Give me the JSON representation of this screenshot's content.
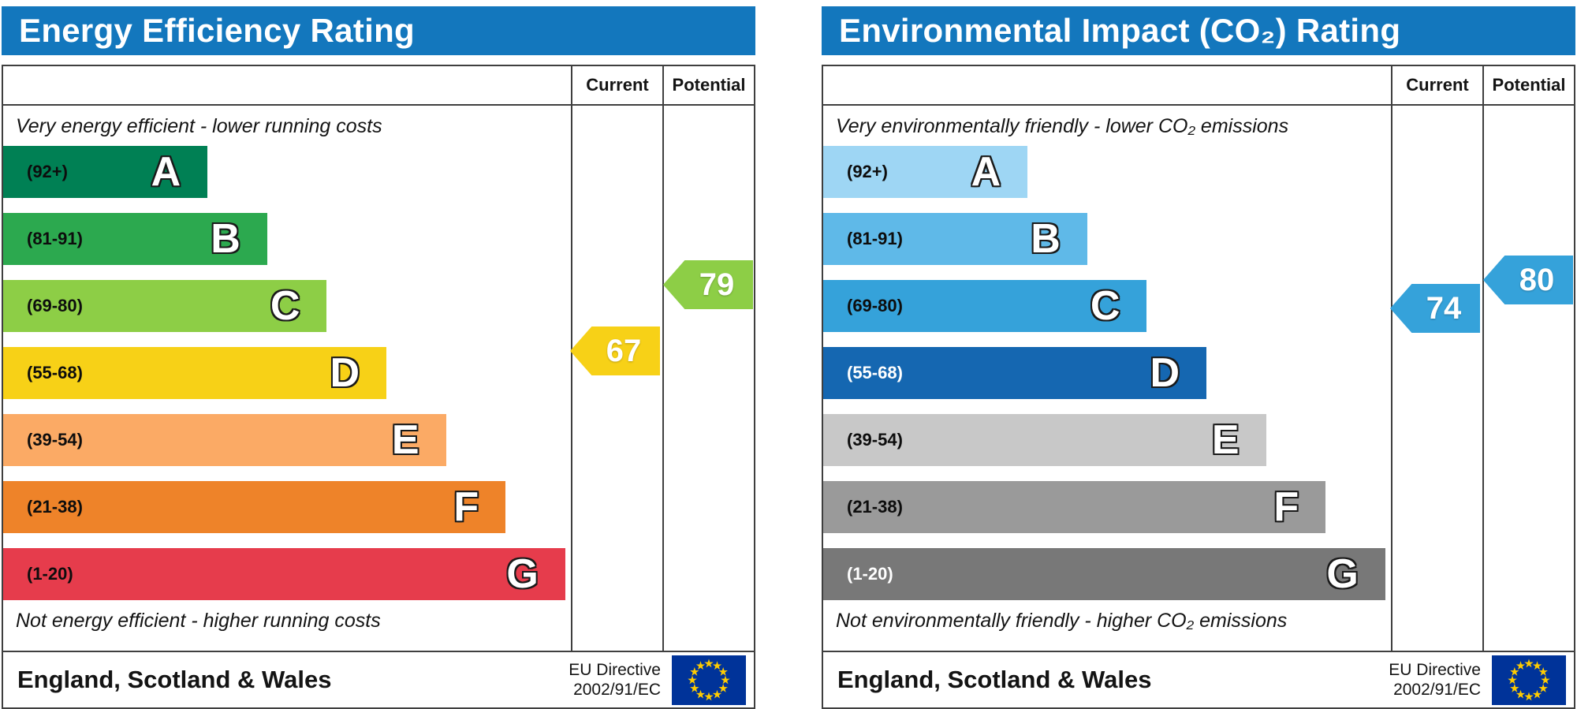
{
  "colors": {
    "eu_flag_blue": "#003399",
    "eu_flag_stars": "#ffcc00"
  },
  "chart_data": [
    {
      "type": "bar",
      "subtype": "epc-rating-scale",
      "title": "Energy Efficiency Rating",
      "header_color": "#1377bd",
      "columns": {
        "current": "Current",
        "potential": "Potential"
      },
      "top_caption": "Very energy efficient - lower running costs",
      "bottom_caption": "Not energy efficient - higher running costs",
      "bands": [
        {
          "label": "(92+)",
          "letter": "A",
          "min": 92,
          "max": 100,
          "color": "#008054",
          "label_color": "#0d0d0d",
          "width_pct": 36
        },
        {
          "label": "(81-91)",
          "letter": "B",
          "min": 81,
          "max": 91,
          "color": "#2ca94f",
          "label_color": "#0d0d0d",
          "width_pct": 46.5
        },
        {
          "label": "(69-80)",
          "letter": "C",
          "min": 69,
          "max": 80,
          "color": "#8dce46",
          "label_color": "#0d0d0d",
          "width_pct": 57
        },
        {
          "label": "(55-68)",
          "letter": "D",
          "min": 55,
          "max": 68,
          "color": "#f7d117",
          "label_color": "#0d0d0d",
          "width_pct": 67.5
        },
        {
          "label": "(39-54)",
          "letter": "E",
          "min": 39,
          "max": 54,
          "color": "#fbaa65",
          "label_color": "#0d0d0d",
          "width_pct": 78
        },
        {
          "label": "(21-38)",
          "letter": "F",
          "min": 21,
          "max": 38,
          "color": "#ee8329",
          "label_color": "#0d0d0d",
          "width_pct": 88.5
        },
        {
          "label": "(1-20)",
          "letter": "G",
          "min": 1,
          "max": 20,
          "color": "#e63c4c",
          "label_color": "#0d0d0d",
          "width_pct": 99
        }
      ],
      "current": {
        "value": 67,
        "color": "#f7d117"
      },
      "potential": {
        "value": 79,
        "color": "#8dce46"
      },
      "footer": {
        "region": "England, Scotland & Wales",
        "directive": "EU Directive\n2002/91/EC"
      }
    },
    {
      "type": "bar",
      "subtype": "epc-rating-scale",
      "title": "Environmental Impact (CO₂) Rating",
      "header_color": "#1377bd",
      "columns": {
        "current": "Current",
        "potential": "Potential"
      },
      "top_caption": "Very environmentally friendly - lower CO₂ emissions",
      "bottom_caption": "Not environmentally friendly - higher CO₂ emissions",
      "bands": [
        {
          "label": "(92+)",
          "letter": "A",
          "min": 92,
          "max": 100,
          "color": "#9ed6f4",
          "label_color": "#0d0d0d",
          "width_pct": 36
        },
        {
          "label": "(81-91)",
          "letter": "B",
          "min": 81,
          "max": 91,
          "color": "#5fb9e8",
          "label_color": "#0d0d0d",
          "width_pct": 46.5
        },
        {
          "label": "(69-80)",
          "letter": "C",
          "min": 69,
          "max": 80,
          "color": "#35a2da",
          "label_color": "#0d0d0d",
          "width_pct": 57
        },
        {
          "label": "(55-68)",
          "letter": "D",
          "min": 55,
          "max": 68,
          "color": "#1567b1",
          "label_color": "#ffffff",
          "width_pct": 67.5
        },
        {
          "label": "(39-54)",
          "letter": "E",
          "min": 39,
          "max": 54,
          "color": "#c8c8c8",
          "label_color": "#0d0d0d",
          "width_pct": 78
        },
        {
          "label": "(21-38)",
          "letter": "F",
          "min": 21,
          "max": 38,
          "color": "#9a9a9a",
          "label_color": "#0d0d0d",
          "width_pct": 88.5
        },
        {
          "label": "(1-20)",
          "letter": "G",
          "min": 1,
          "max": 20,
          "color": "#787878",
          "label_color": "#ffffff",
          "width_pct": 99
        }
      ],
      "current": {
        "value": 74,
        "color": "#35a2da"
      },
      "potential": {
        "value": 80,
        "color": "#35a2da"
      },
      "footer": {
        "region": "England, Scotland & Wales",
        "directive": "EU Directive\n2002/91/EC"
      }
    }
  ]
}
